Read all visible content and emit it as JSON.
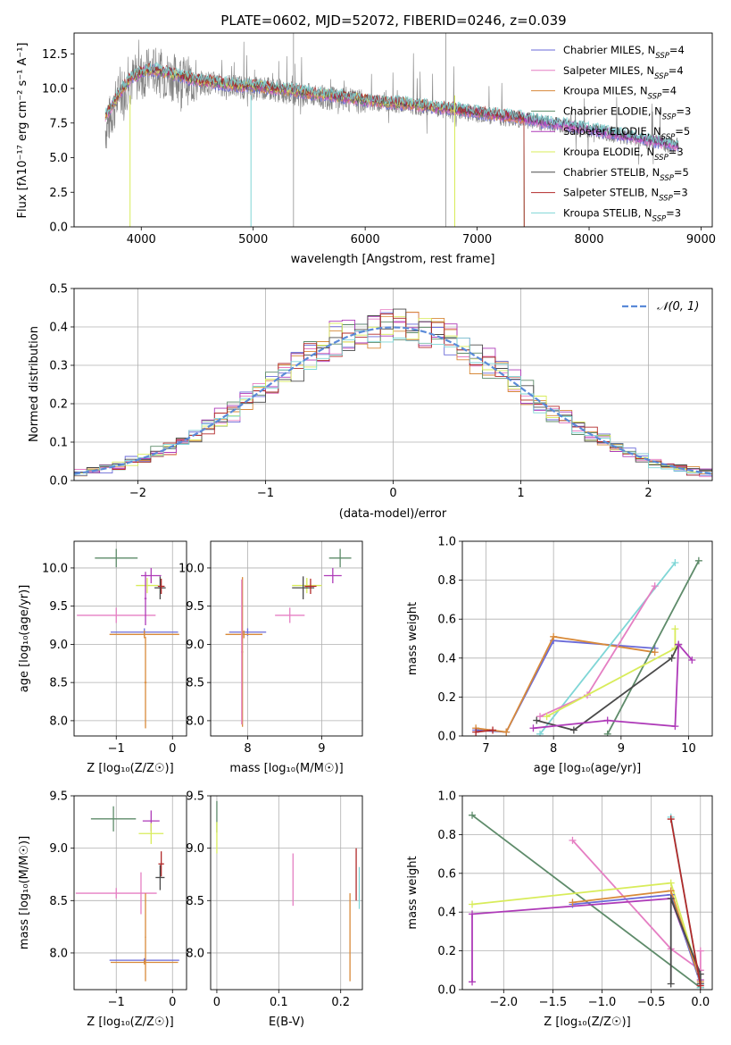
{
  "colors": {
    "chab_miles": "#6a6ad8",
    "salp_miles": "#e57fc3",
    "krou_miles": "#d88a3a",
    "chab_elodie": "#5e8b6a",
    "salp_elodie": "#ae3ab8",
    "krou_elodie": "#d8ec5a",
    "chab_stelib": "#4a4a4a",
    "salp_stelib": "#b22a2a",
    "krou_stelib": "#7fd6d6",
    "data": "#808080",
    "gauss": "#5a8ad8"
  },
  "legend": [
    {
      "model": "Chabrier MILES",
      "n": "4",
      "color_key": "chab_miles"
    },
    {
      "model": "Salpeter MILES",
      "n": "4",
      "color_key": "salp_miles"
    },
    {
      "model": "Kroupa MILES",
      "n": "4",
      "color_key": "krou_miles"
    },
    {
      "model": "Chabrier ELODIE",
      "n": "3",
      "color_key": "chab_elodie"
    },
    {
      "model": "Salpeter ELODIE",
      "n": "5",
      "color_key": "salp_elodie"
    },
    {
      "model": "Kroupa ELODIE",
      "n": "3",
      "color_key": "krou_elodie"
    },
    {
      "model": "Chabrier STELIB",
      "n": "5",
      "color_key": "chab_stelib"
    },
    {
      "model": "Salpeter STELIB",
      "n": "3",
      "color_key": "salp_stelib"
    },
    {
      "model": "Kroupa STELIB",
      "n": "3",
      "color_key": "krou_stelib"
    }
  ],
  "chart_data": [
    {
      "type": "line",
      "title": "PLATE=0602, MJD=52072, FIBERID=0246, z=0.039",
      "xlabel": "wavelength [Angstrom, rest frame]",
      "ylabel": "Flux [fλ10⁻¹⁷ erg cm⁻² s⁻¹ A⁻¹]",
      "xlim": [
        3400,
        9100
      ],
      "ylim": [
        0,
        14
      ],
      "xticks": [
        4000,
        5000,
        6000,
        7000,
        8000,
        9000
      ],
      "yticks": [
        0.0,
        2.5,
        5.0,
        7.5,
        10.0,
        12.5
      ],
      "ytick_labels": [
        "0.0",
        "2.5",
        "5.0",
        "7.5",
        "10.0",
        "12.5"
      ],
      "legend_placement": "right",
      "series": [
        {
          "role": "data",
          "x": [
            3680,
            3800,
            3900,
            4000,
            4100,
            4200,
            4300,
            4400,
            4500,
            4600,
            4700,
            4800,
            4900,
            5000,
            5200,
            5400,
            5600,
            5800,
            6000,
            6200,
            6400,
            6600,
            6800,
            7000,
            7200,
            7400,
            7600,
            7800,
            8000,
            8200,
            8400,
            8600,
            8800
          ],
          "y": [
            7.0,
            9.5,
            10.5,
            11.0,
            11.3,
            11.0,
            10.8,
            10.6,
            10.4,
            10.4,
            10.3,
            10.2,
            10.1,
            10.0,
            9.9,
            9.6,
            9.4,
            9.2,
            9.0,
            8.9,
            8.7,
            8.5,
            8.3,
            8.1,
            7.9,
            7.7,
            7.5,
            7.3,
            7.0,
            6.7,
            6.4,
            6.1,
            5.8
          ]
        },
        {
          "role": "model",
          "x": [
            3680,
            3800,
            3900,
            4000,
            4100,
            4200,
            4300,
            4400,
            4500,
            4600,
            4700,
            4800,
            4900,
            5000,
            5200,
            5400,
            5600,
            5800,
            6000,
            6200,
            6400,
            6600,
            6800,
            7000,
            7200,
            7400,
            7600,
            7800,
            8000,
            8200,
            8400,
            8600,
            8800
          ],
          "y": [
            8.0,
            9.6,
            10.7,
            11.2,
            11.4,
            11.2,
            11.0,
            10.8,
            10.6,
            10.5,
            10.4,
            10.3,
            10.2,
            10.2,
            10.0,
            9.8,
            9.6,
            9.4,
            9.2,
            9.0,
            8.9,
            8.7,
            8.5,
            8.3,
            8.1,
            7.9,
            7.6,
            7.4,
            7.1,
            6.8,
            6.5,
            6.2,
            5.9
          ]
        }
      ]
    },
    {
      "type": "bar",
      "xlabel": "(data-model)/error",
      "ylabel": "Normed distribution",
      "xlim": [
        -2.5,
        2.5
      ],
      "ylim": [
        0,
        0.5
      ],
      "xticks": [
        -2,
        -1,
        0,
        1,
        2
      ],
      "yticks": [
        0.0,
        0.1,
        0.2,
        0.3,
        0.4,
        0.5
      ],
      "ytick_labels": [
        "0.0",
        "0.1",
        "0.2",
        "0.3",
        "0.4",
        "0.5"
      ],
      "legend": "𝒩(0, 1)",
      "legend_placement": "top-right",
      "bin_width": 0.1,
      "series": [
        {
          "name": "normal",
          "mu": 0,
          "sigma": 1
        }
      ]
    },
    {
      "type": "scatter",
      "xlabel": "Z [log₁₀(Z/Z☉)]",
      "ylabel": "age  [log₁₀(age/yr)]",
      "xlim": [
        -1.75,
        0.25
      ],
      "ylim": [
        7.8,
        10.35
      ],
      "xticks": [
        -1,
        0
      ],
      "yticks": [
        8.0,
        8.5,
        9.0,
        9.5,
        10.0
      ],
      "ytick_labels": [
        "8.0",
        "8.5",
        "9.0",
        "9.5",
        "10.0"
      ],
      "points": [
        {
          "k": "chab_elodie",
          "x": -1.0,
          "y": 10.13,
          "xe": 0.38,
          "ye": 0.12
        },
        {
          "k": "salp_elodie",
          "x": -0.38,
          "y": 9.9,
          "xe": 0.18,
          "ye": 0.1
        },
        {
          "k": "krou_elodie",
          "x": -0.45,
          "y": 9.77,
          "xe": 0.2,
          "ye": 0.1
        },
        {
          "k": "chab_stelib",
          "x": -0.22,
          "y": 9.74,
          "xe": 0.1,
          "ye": 0.15
        },
        {
          "k": "salp_stelib",
          "x": -0.2,
          "y": 9.76,
          "xe": 0.06,
          "ye": 0.1
        },
        {
          "k": "salp_miles",
          "x": -1.0,
          "y": 9.38,
          "xe": 0.7,
          "ye": 0.1
        },
        {
          "k": "chab_miles",
          "x": -0.5,
          "y": 9.16,
          "xe": 0.6,
          "ye": 0.05
        },
        {
          "k": "krou_miles",
          "x": -0.5,
          "y": 9.13,
          "xe": 0.62,
          "ye": 0.05
        },
        {
          "k": "krou_miles",
          "x": -0.48,
          "y": 8.5,
          "xe": 0.02,
          "ye": 0.6
        },
        {
          "k": "salp_elodie",
          "x": -0.48,
          "y": 9.6,
          "xe": 0.02,
          "ye": 0.35
        }
      ]
    },
    {
      "type": "scatter",
      "xlabel": "mass [log₁₀(M/M☉)]",
      "xlim": [
        7.5,
        9.55
      ],
      "ylim": [
        7.8,
        10.35
      ],
      "xticks": [
        8,
        9
      ],
      "yticks": [
        8.0,
        8.5,
        9.0,
        9.5,
        10.0
      ],
      "ytick_labels": [
        "8.0",
        "8.5",
        "9.0",
        "9.5",
        "10.0"
      ],
      "points": [
        {
          "k": "chab_elodie",
          "x": 9.25,
          "y": 10.13,
          "xe": 0.15,
          "ye": 0.12
        },
        {
          "k": "salp_elodie",
          "x": 9.15,
          "y": 9.9,
          "xe": 0.12,
          "ye": 0.1
        },
        {
          "k": "krou_elodie",
          "x": 8.8,
          "y": 9.77,
          "xe": 0.2,
          "ye": 0.1
        },
        {
          "k": "chab_stelib",
          "x": 8.75,
          "y": 9.74,
          "xe": 0.15,
          "ye": 0.15
        },
        {
          "k": "salp_stelib",
          "x": 8.85,
          "y": 9.76,
          "xe": 0.08,
          "ye": 0.1
        },
        {
          "k": "salp_miles",
          "x": 8.57,
          "y": 9.38,
          "xe": 0.2,
          "ye": 0.1
        },
        {
          "k": "chab_miles",
          "x": 8.0,
          "y": 9.16,
          "xe": 0.25,
          "ye": 0.05
        },
        {
          "k": "krou_miles",
          "x": 7.95,
          "y": 9.13,
          "xe": 0.25,
          "ye": 0.05
        },
        {
          "k": "krou_miles",
          "x": 7.93,
          "y": 8.9,
          "xe": 0.01,
          "ye": 0.98
        },
        {
          "k": "salp_miles",
          "x": 7.92,
          "y": 8.9,
          "xe": 0.01,
          "ye": 0.95
        }
      ]
    },
    {
      "type": "line",
      "xlabel": "age  [log₁₀(age/yr)]",
      "ylabel": "mass weight",
      "xlim": [
        6.65,
        10.35
      ],
      "ylim": [
        0,
        1
      ],
      "xticks": [
        7,
        8,
        9,
        10
      ],
      "yticks": [
        0.0,
        0.2,
        0.4,
        0.6,
        0.8,
        1.0
      ],
      "ytick_labels": [
        "0.0",
        "0.2",
        "0.4",
        "0.6",
        "0.8",
        "1.0"
      ],
      "series": [
        {
          "k": "chab_miles",
          "x": [
            6.85,
            7.3,
            8.0,
            9.5
          ],
          "y": [
            0.03,
            0.02,
            0.49,
            0.45
          ]
        },
        {
          "k": "krou_miles",
          "x": [
            6.85,
            7.3,
            8.0,
            9.5
          ],
          "y": [
            0.04,
            0.02,
            0.51,
            0.43
          ]
        },
        {
          "k": "krou_stelib",
          "x": [
            7.8,
            9.8
          ],
          "y": [
            0.01,
            0.89
          ]
        },
        {
          "k": "salp_miles",
          "x": [
            7.8,
            8.5,
            9.5
          ],
          "y": [
            0.1,
            0.21,
            0.77
          ]
        },
        {
          "k": "chab_elodie",
          "x": [
            8.8,
            10.15
          ],
          "y": [
            0.01,
            0.9
          ]
        },
        {
          "k": "krou_elodie",
          "x": [
            7.9,
            9.8,
            9.8
          ],
          "y": [
            0.1,
            0.45,
            0.55
          ]
        },
        {
          "k": "chab_stelib",
          "x": [
            7.75,
            8.3,
            9.75,
            9.85
          ],
          "y": [
            0.08,
            0.03,
            0.4,
            0.47
          ]
        },
        {
          "k": "salp_elodie",
          "x": [
            7.7,
            8.8,
            9.8,
            9.85,
            10.05
          ],
          "y": [
            0.04,
            0.08,
            0.05,
            0.47,
            0.39
          ]
        },
        {
          "k": "salp_stelib",
          "x": [
            6.85,
            7.1
          ],
          "y": [
            0.02,
            0.03
          ]
        }
      ]
    },
    {
      "type": "scatter",
      "xlabel": "Z [log₁₀(Z/Z☉)]",
      "ylabel": "mass [log₁₀(M/M☉)]",
      "xlim": [
        -1.75,
        0.25
      ],
      "ylim": [
        7.65,
        9.5
      ],
      "xticks": [
        -1,
        0
      ],
      "yticks": [
        8.0,
        8.5,
        9.0,
        9.5
      ],
      "ytick_labels": [
        "8.0",
        "8.5",
        "9.0",
        "9.5"
      ],
      "points": [
        {
          "k": "chab_elodie",
          "x": -1.05,
          "y": 9.28,
          "xe": 0.4,
          "ye": 0.12
        },
        {
          "k": "salp_elodie",
          "x": -0.38,
          "y": 9.26,
          "xe": 0.15,
          "ye": 0.1
        },
        {
          "k": "krou_elodie",
          "x": -0.38,
          "y": 9.14,
          "xe": 0.22,
          "ye": 0.1
        },
        {
          "k": "salp_stelib",
          "x": -0.2,
          "y": 8.85,
          "xe": 0.05,
          "ye": 0.12
        },
        {
          "k": "chab_stelib",
          "x": -0.22,
          "y": 8.72,
          "xe": 0.08,
          "ye": 0.12
        },
        {
          "k": "salp_miles",
          "x": -1.0,
          "y": 8.57,
          "xe": 0.72,
          "ye": 0.05
        },
        {
          "k": "chab_miles",
          "x": -0.5,
          "y": 7.93,
          "xe": 0.62,
          "ye": 0.02
        },
        {
          "k": "krou_miles",
          "x": -0.5,
          "y": 7.91,
          "xe": 0.6,
          "ye": 0.02
        },
        {
          "k": "krou_miles",
          "x": -0.48,
          "y": 8.15,
          "xe": 0.01,
          "ye": 0.42
        },
        {
          "k": "salp_miles",
          "x": -0.56,
          "y": 8.57,
          "xe": 0.01,
          "ye": 0.2
        }
      ]
    },
    {
      "type": "scatter",
      "xlabel": "E(B-V)",
      "xlim": [
        -0.01,
        0.235
      ],
      "ylim": [
        7.65,
        9.5
      ],
      "xticks": [
        0.0,
        0.1,
        0.2
      ],
      "yticks": [
        8.0,
        8.5,
        9.0,
        9.5
      ],
      "ytick_labels": [
        "8.0",
        "8.5",
        "9.0",
        "9.5"
      ],
      "points": [
        {
          "k": "chab_elodie",
          "x": 0.0,
          "y": 9.3,
          "xe": 0.0,
          "ye": 0.15
        },
        {
          "k": "krou_elodie",
          "x": 0.0,
          "y": 9.1,
          "xe": 0.0,
          "ye": 0.15
        },
        {
          "k": "salp_miles",
          "x": 0.123,
          "y": 8.7,
          "xe": 0.0,
          "ye": 0.25
        },
        {
          "k": "krou_miles",
          "x": 0.215,
          "y": 8.15,
          "xe": 0.0,
          "ye": 0.42
        },
        {
          "k": "salp_stelib",
          "x": 0.225,
          "y": 8.75,
          "xe": 0.0,
          "ye": 0.25
        },
        {
          "k": "krou_stelib",
          "x": 0.23,
          "y": 8.62,
          "xe": 0.0,
          "ye": 0.2
        }
      ]
    },
    {
      "type": "line",
      "xlabel": "Z [log₁₀(Z/Z☉)]",
      "ylabel": "mass weight",
      "xlim": [
        -2.42,
        0.12
      ],
      "ylim": [
        0,
        1
      ],
      "xticks": [
        -2.0,
        -1.5,
        -1.0,
        -0.5,
        0.0
      ],
      "xtick_labels": [
        "−2.0",
        "−1.5",
        "−1.0",
        "−0.5",
        "0.0"
      ],
      "yticks": [
        0.0,
        0.2,
        0.4,
        0.6,
        0.8,
        1.0
      ],
      "ytick_labels": [
        "0.0",
        "0.2",
        "0.4",
        "0.6",
        "0.8",
        "1.0"
      ],
      "series": [
        {
          "k": "chab_elodie",
          "x": [
            -2.32,
            0.0
          ],
          "y": [
            0.9,
            0.01
          ]
        },
        {
          "k": "salp_miles",
          "x": [
            -1.3,
            -0.3,
            0.0,
            0.0
          ],
          "y": [
            0.77,
            0.21,
            0.1,
            0.2
          ]
        },
        {
          "k": "krou_elodie",
          "x": [
            -2.32,
            -0.3,
            0.0
          ],
          "y": [
            0.44,
            0.55,
            0.05
          ]
        },
        {
          "k": "salp_elodie",
          "x": [
            -2.32,
            -2.32,
            -0.3,
            0.0
          ],
          "y": [
            0.04,
            0.39,
            0.47,
            0.05
          ]
        },
        {
          "k": "chab_miles",
          "x": [
            -1.3,
            -0.3,
            0.0
          ],
          "y": [
            0.44,
            0.49,
            0.03
          ]
        },
        {
          "k": "krou_miles",
          "x": [
            -1.3,
            -0.3,
            0.0
          ],
          "y": [
            0.45,
            0.51,
            0.04
          ]
        },
        {
          "k": "krou_stelib",
          "x": [
            -0.3,
            0.0
          ],
          "y": [
            0.89,
            0.01
          ]
        },
        {
          "k": "chab_stelib",
          "x": [
            -0.3,
            -0.3,
            0.0,
            0.0
          ],
          "y": [
            0.03,
            0.47,
            0.08,
            0.03
          ]
        },
        {
          "k": "salp_stelib",
          "x": [
            -0.3,
            0.0
          ],
          "y": [
            0.88,
            0.02
          ]
        }
      ]
    }
  ]
}
